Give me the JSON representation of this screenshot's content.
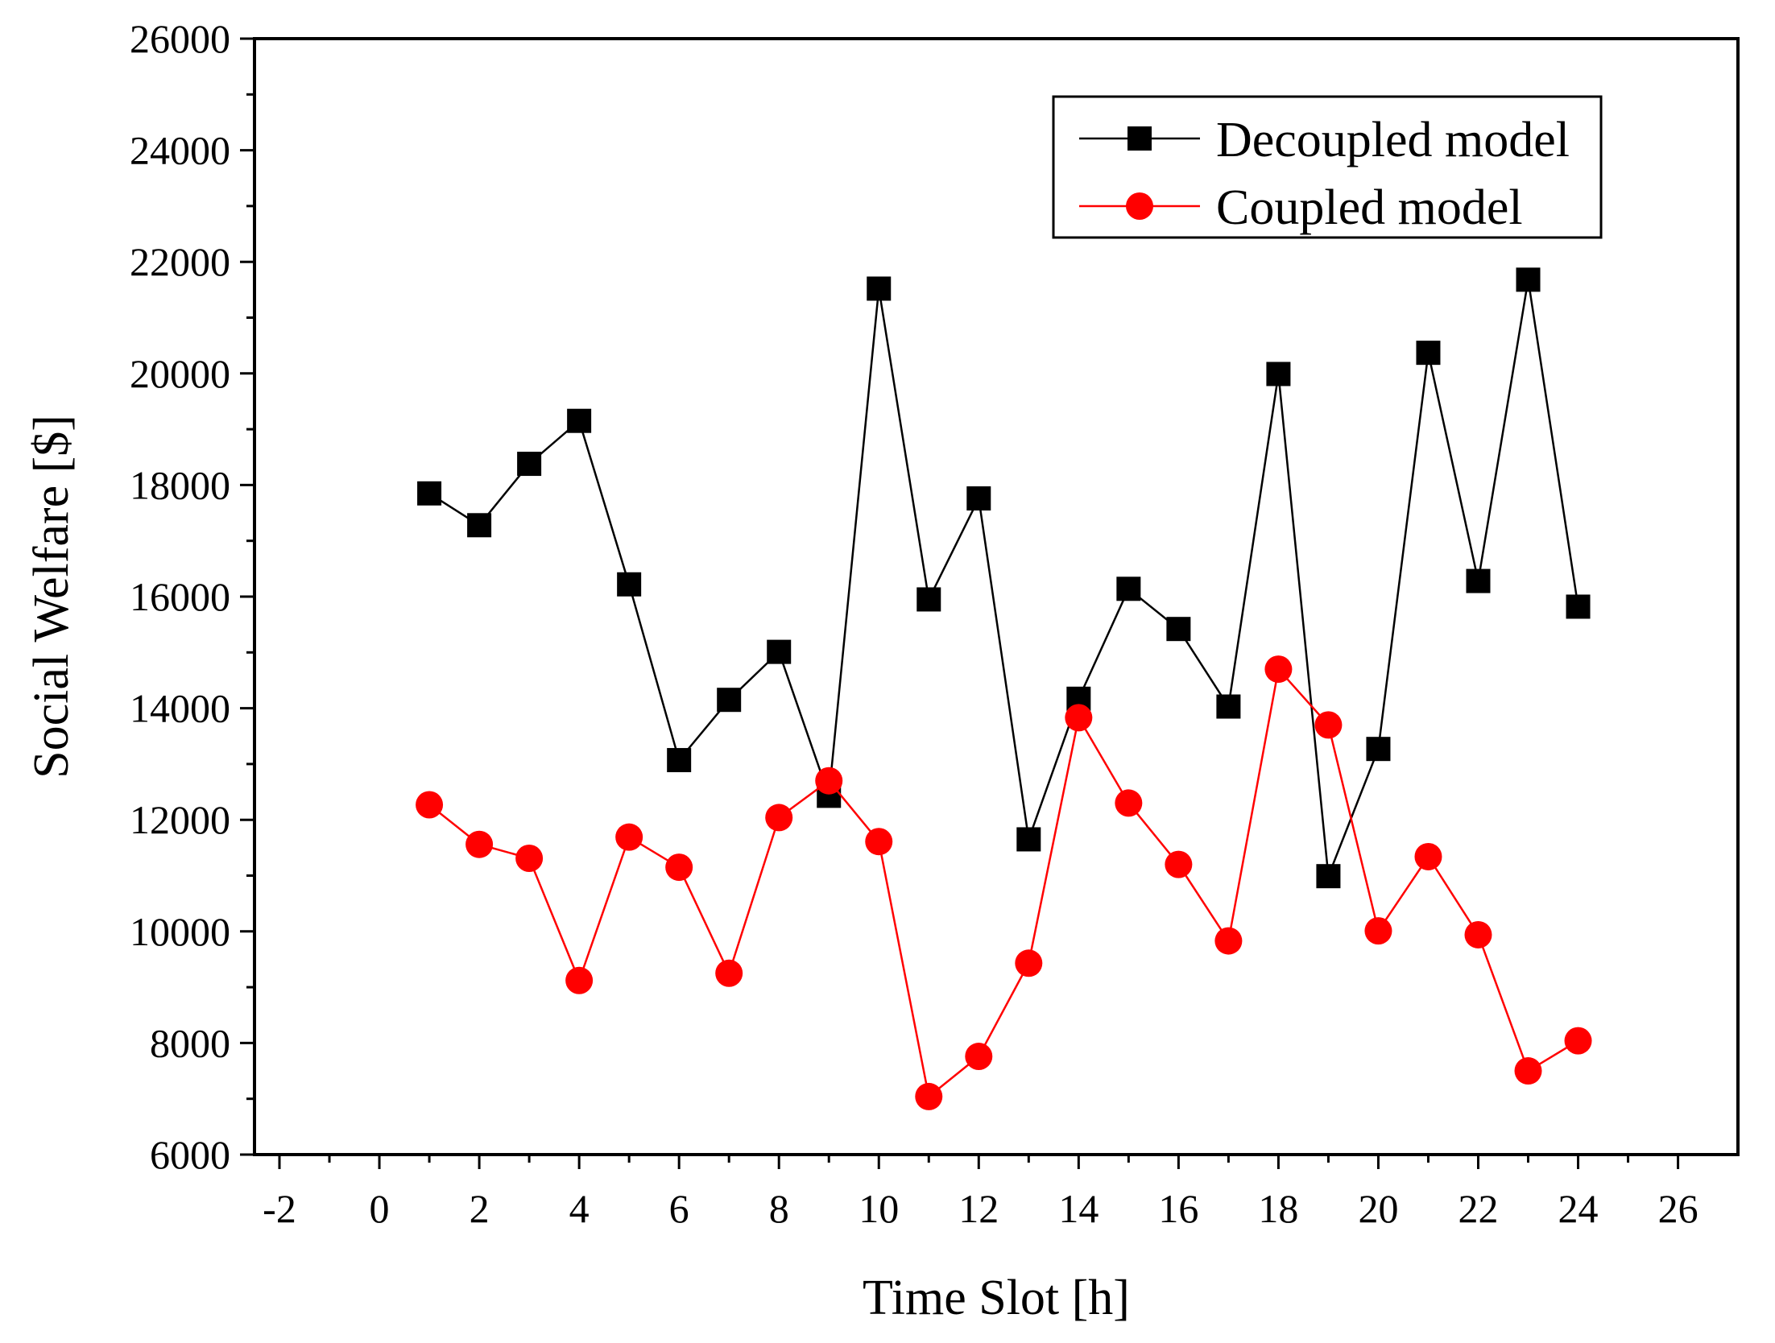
{
  "chart_data": {
    "type": "line",
    "title": "",
    "xlabel": "Time Slot [h]",
    "ylabel": "Social Welfare [$]",
    "xlim": [
      -2.5,
      27.2
    ],
    "ylim": [
      6000,
      26000
    ],
    "xticks": [
      -2,
      0,
      2,
      4,
      6,
      8,
      10,
      12,
      14,
      16,
      18,
      20,
      22,
      24,
      26
    ],
    "xtick_labels": [
      "-2",
      "0",
      "2",
      "4",
      "6",
      "8",
      "10",
      "12",
      "14",
      "16",
      "18",
      "20",
      "22",
      "24",
      "26"
    ],
    "yticks": [
      6000,
      8000,
      10000,
      12000,
      14000,
      16000,
      18000,
      20000,
      22000,
      24000,
      26000
    ],
    "ytick_labels": [
      "6000",
      "8000",
      "10000",
      "12000",
      "14000",
      "16000",
      "18000",
      "20000",
      "22000",
      "24000",
      "26000"
    ],
    "grid": false,
    "legend_position": "top-right",
    "x": [
      1,
      2,
      3,
      4,
      5,
      6,
      7,
      8,
      9,
      10,
      11,
      12,
      13,
      14,
      15,
      16,
      17,
      18,
      19,
      20,
      21,
      22,
      23,
      24
    ],
    "series": [
      {
        "name": "Decoupled model",
        "color": "#000000",
        "marker": "square",
        "values": [
          17850,
          17280,
          18380,
          19150,
          16220,
          13070,
          14150,
          15010,
          12430,
          21520,
          15950,
          17760,
          11650,
          14170,
          16140,
          15420,
          14030,
          19990,
          10990,
          13270,
          20370,
          16280,
          21680,
          15820
        ]
      },
      {
        "name": "Coupled model",
        "color": "#ff0000",
        "marker": "circle",
        "values": [
          12270,
          11560,
          11310,
          9120,
          11690,
          11150,
          9250,
          12040,
          12700,
          11610,
          7040,
          7760,
          9430,
          13830,
          12300,
          11200,
          9830,
          14700,
          13700,
          10010,
          11340,
          9940,
          7500,
          8040
        ]
      }
    ]
  }
}
